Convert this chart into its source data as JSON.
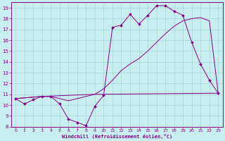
{
  "xlabel": "Windchill (Refroidissement éolien,°C)",
  "bg_color": "#c8eef0",
  "line_color": "#880088",
  "xlim": [
    -0.5,
    23.5
  ],
  "ylim": [
    8,
    19.5
  ],
  "yticks": [
    8,
    9,
    10,
    11,
    12,
    13,
    14,
    15,
    16,
    17,
    18,
    19
  ],
  "xticks": [
    0,
    1,
    2,
    3,
    4,
    5,
    6,
    7,
    8,
    9,
    10,
    11,
    12,
    13,
    14,
    15,
    16,
    17,
    18,
    19,
    20,
    21,
    22,
    23
  ],
  "line1_x": [
    0,
    1,
    2,
    3,
    4,
    5,
    6,
    7,
    8,
    9,
    10,
    11,
    12,
    13,
    14,
    15,
    16,
    17,
    18,
    19,
    20,
    21,
    22,
    23
  ],
  "line1_y": [
    10.6,
    10.1,
    10.5,
    10.8,
    10.8,
    10.1,
    8.7,
    8.4,
    8.1,
    9.9,
    10.9,
    17.2,
    17.4,
    18.4,
    17.5,
    18.3,
    19.2,
    19.2,
    18.7,
    18.3,
    15.8,
    13.8,
    12.3,
    11.1
  ],
  "line2_x": [
    0,
    3,
    4,
    5,
    6,
    9,
    10,
    11,
    12,
    13,
    14,
    15,
    16,
    17,
    18,
    19,
    20,
    21,
    22,
    23
  ],
  "line2_y": [
    10.6,
    10.8,
    10.8,
    10.6,
    10.4,
    11.0,
    11.5,
    12.3,
    13.2,
    13.8,
    14.3,
    15.0,
    15.8,
    16.6,
    17.3,
    17.8,
    18.0,
    18.1,
    17.8,
    11.1
  ],
  "line3_x": [
    0,
    3,
    9,
    10,
    23
  ],
  "line3_y": [
    10.6,
    10.8,
    11.0,
    11.0,
    11.1
  ],
  "markersize": 2.0
}
